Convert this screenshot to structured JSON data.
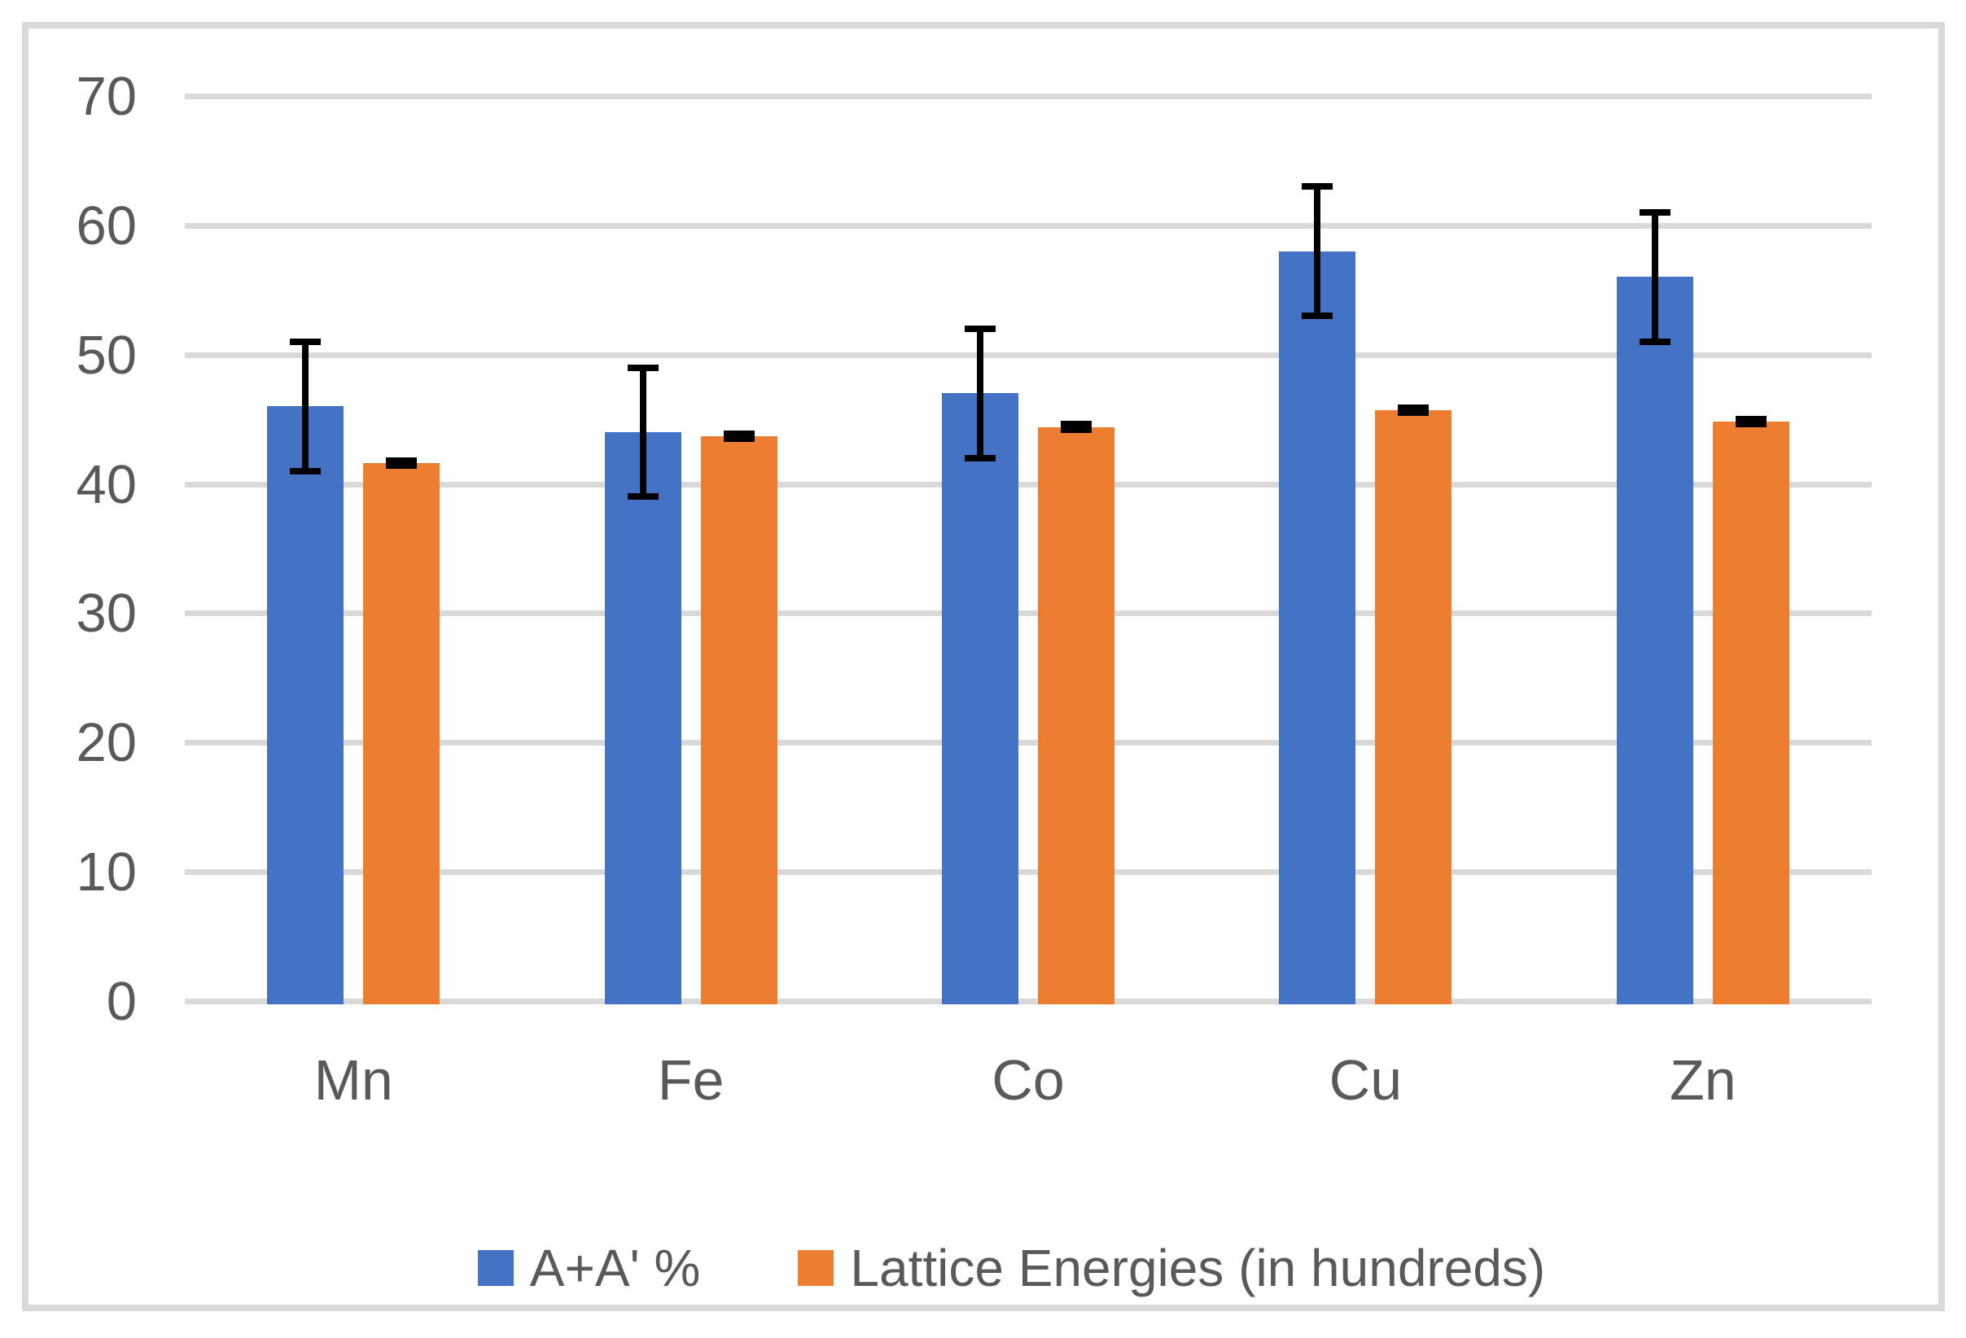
{
  "chart_data": {
    "type": "bar",
    "title": "",
    "categories": [
      "Mn",
      "Fe",
      "Co",
      "Cu",
      "Zn"
    ],
    "series": [
      {
        "name": "A+A' %",
        "color": "#4472C4",
        "values": [
          46,
          44,
          47,
          58,
          56
        ],
        "errors": [
          5,
          5,
          5,
          5,
          5
        ]
      },
      {
        "name": "Lattice Energies (in hundreds)",
        "color": "#ED7D31",
        "values": [
          41.6,
          43.7,
          44.4,
          45.7,
          44.8
        ],
        "errors": [
          0.2,
          0.2,
          0.2,
          0.2,
          0.2
        ]
      }
    ],
    "y_axis": {
      "min": 0,
      "max": 70,
      "step": 10,
      "tick_labels": [
        "0",
        "10",
        "20",
        "30",
        "40",
        "50",
        "60",
        "70"
      ]
    },
    "x_axis": {
      "tick_labels": [
        "Mn",
        "Fe",
        "Co",
        "Cu",
        "Zn"
      ]
    },
    "grid": true,
    "legend_position": "bottom",
    "error_bar_color": "#000000"
  },
  "colors": {
    "series_blue": "#4472C4",
    "series_orange": "#ED7D31",
    "gridline": "#D9D9D9",
    "frame_border": "#D9D9D9",
    "axis_text": "#595959",
    "background": "#FFFFFF",
    "error_bar": "#000000"
  }
}
